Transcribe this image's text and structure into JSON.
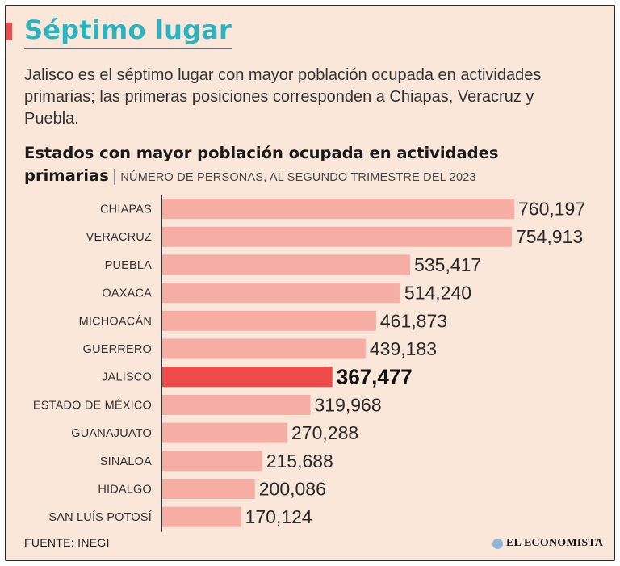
{
  "title": "Séptimo lugar",
  "intro": "Jalisco es el séptimo lugar con mayor población ocupada en actividades primarias; las primeras posiciones corresponden a Chiapas, Veracruz y Puebla.",
  "chart_title": "Estados con mayor población ocupada en actividades primarias",
  "chart_subtitle": "NÚMERO DE PERSONAS, AL SEGUNDO TRIMESTRE DEL 2023",
  "source": "FUENTE: INEGI",
  "brand": "EL ECONOMISTA",
  "colors": {
    "background": "#fbe6da",
    "bar": "#f6aea4",
    "highlight": "#ef4b4b",
    "title": "#2bb3bf"
  },
  "chart_data": {
    "type": "bar",
    "orientation": "horizontal",
    "categories": [
      "CHIAPAS",
      "VERACRUZ",
      "PUEBLA",
      "OAXACA",
      "MICHOACÁN",
      "GUERRERO",
      "JALISCO",
      "ESTADO DE MÉXICO",
      "GUANAJUATO",
      "SINALOA",
      "HIDALGO",
      "SAN LUÍS POTOSÍ"
    ],
    "values": [
      760197,
      754913,
      535417,
      514240,
      461873,
      439183,
      367477,
      319968,
      270288,
      215688,
      200086,
      170124
    ],
    "value_labels": [
      "760,197",
      "754,913",
      "535,417",
      "514,240",
      "461,873",
      "439,183",
      "367,477",
      "319,968",
      "270,288",
      "215,688",
      "200,086",
      "170,124"
    ],
    "highlight": "JALISCO",
    "xlim": [
      0,
      760197
    ],
    "grid": false
  }
}
